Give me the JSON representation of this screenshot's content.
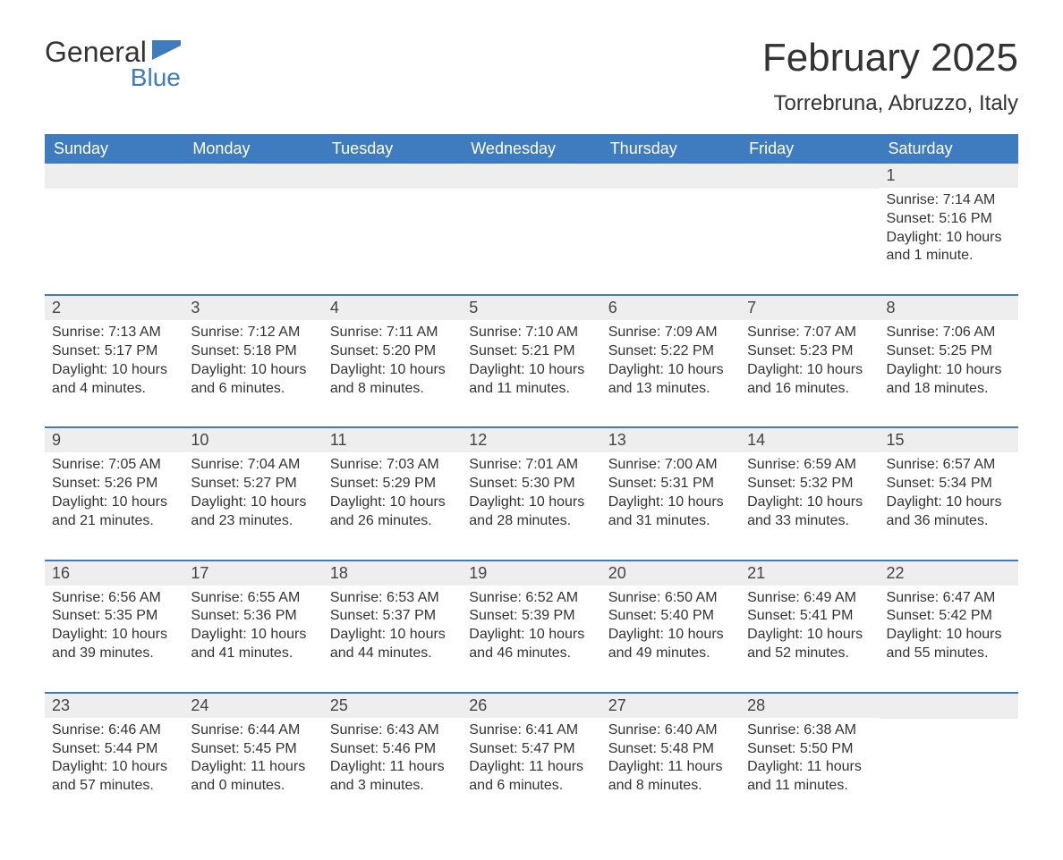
{
  "logo": {
    "word1": "General",
    "word2": "Blue",
    "color1": "#333333",
    "color2": "#3e7cbf"
  },
  "title": "February 2025",
  "location": "Torrebruna, Abruzzo, Italy",
  "colors": {
    "header_bg": "#3e7cbf",
    "header_text": "#ffffff",
    "daynum_bg": "#eeeeee",
    "row_border": "#3e7cbf",
    "text": "#333333",
    "background": "#ffffff"
  },
  "fonts": {
    "title_size": 44,
    "location_size": 24,
    "dayhead_size": 18,
    "cell_size": 16
  },
  "weekdays": [
    "Sunday",
    "Monday",
    "Tuesday",
    "Wednesday",
    "Thursday",
    "Friday",
    "Saturday"
  ],
  "weeks": [
    [
      null,
      null,
      null,
      null,
      null,
      null,
      {
        "n": "1",
        "sr": "Sunrise: 7:14 AM",
        "ss": "Sunset: 5:16 PM",
        "d1": "Daylight: 10 hours",
        "d2": "and 1 minute."
      }
    ],
    [
      {
        "n": "2",
        "sr": "Sunrise: 7:13 AM",
        "ss": "Sunset: 5:17 PM",
        "d1": "Daylight: 10 hours",
        "d2": "and 4 minutes."
      },
      {
        "n": "3",
        "sr": "Sunrise: 7:12 AM",
        "ss": "Sunset: 5:18 PM",
        "d1": "Daylight: 10 hours",
        "d2": "and 6 minutes."
      },
      {
        "n": "4",
        "sr": "Sunrise: 7:11 AM",
        "ss": "Sunset: 5:20 PM",
        "d1": "Daylight: 10 hours",
        "d2": "and 8 minutes."
      },
      {
        "n": "5",
        "sr": "Sunrise: 7:10 AM",
        "ss": "Sunset: 5:21 PM",
        "d1": "Daylight: 10 hours",
        "d2": "and 11 minutes."
      },
      {
        "n": "6",
        "sr": "Sunrise: 7:09 AM",
        "ss": "Sunset: 5:22 PM",
        "d1": "Daylight: 10 hours",
        "d2": "and 13 minutes."
      },
      {
        "n": "7",
        "sr": "Sunrise: 7:07 AM",
        "ss": "Sunset: 5:23 PM",
        "d1": "Daylight: 10 hours",
        "d2": "and 16 minutes."
      },
      {
        "n": "8",
        "sr": "Sunrise: 7:06 AM",
        "ss": "Sunset: 5:25 PM",
        "d1": "Daylight: 10 hours",
        "d2": "and 18 minutes."
      }
    ],
    [
      {
        "n": "9",
        "sr": "Sunrise: 7:05 AM",
        "ss": "Sunset: 5:26 PM",
        "d1": "Daylight: 10 hours",
        "d2": "and 21 minutes."
      },
      {
        "n": "10",
        "sr": "Sunrise: 7:04 AM",
        "ss": "Sunset: 5:27 PM",
        "d1": "Daylight: 10 hours",
        "d2": "and 23 minutes."
      },
      {
        "n": "11",
        "sr": "Sunrise: 7:03 AM",
        "ss": "Sunset: 5:29 PM",
        "d1": "Daylight: 10 hours",
        "d2": "and 26 minutes."
      },
      {
        "n": "12",
        "sr": "Sunrise: 7:01 AM",
        "ss": "Sunset: 5:30 PM",
        "d1": "Daylight: 10 hours",
        "d2": "and 28 minutes."
      },
      {
        "n": "13",
        "sr": "Sunrise: 7:00 AM",
        "ss": "Sunset: 5:31 PM",
        "d1": "Daylight: 10 hours",
        "d2": "and 31 minutes."
      },
      {
        "n": "14",
        "sr": "Sunrise: 6:59 AM",
        "ss": "Sunset: 5:32 PM",
        "d1": "Daylight: 10 hours",
        "d2": "and 33 minutes."
      },
      {
        "n": "15",
        "sr": "Sunrise: 6:57 AM",
        "ss": "Sunset: 5:34 PM",
        "d1": "Daylight: 10 hours",
        "d2": "and 36 minutes."
      }
    ],
    [
      {
        "n": "16",
        "sr": "Sunrise: 6:56 AM",
        "ss": "Sunset: 5:35 PM",
        "d1": "Daylight: 10 hours",
        "d2": "and 39 minutes."
      },
      {
        "n": "17",
        "sr": "Sunrise: 6:55 AM",
        "ss": "Sunset: 5:36 PM",
        "d1": "Daylight: 10 hours",
        "d2": "and 41 minutes."
      },
      {
        "n": "18",
        "sr": "Sunrise: 6:53 AM",
        "ss": "Sunset: 5:37 PM",
        "d1": "Daylight: 10 hours",
        "d2": "and 44 minutes."
      },
      {
        "n": "19",
        "sr": "Sunrise: 6:52 AM",
        "ss": "Sunset: 5:39 PM",
        "d1": "Daylight: 10 hours",
        "d2": "and 46 minutes."
      },
      {
        "n": "20",
        "sr": "Sunrise: 6:50 AM",
        "ss": "Sunset: 5:40 PM",
        "d1": "Daylight: 10 hours",
        "d2": "and 49 minutes."
      },
      {
        "n": "21",
        "sr": "Sunrise: 6:49 AM",
        "ss": "Sunset: 5:41 PM",
        "d1": "Daylight: 10 hours",
        "d2": "and 52 minutes."
      },
      {
        "n": "22",
        "sr": "Sunrise: 6:47 AM",
        "ss": "Sunset: 5:42 PM",
        "d1": "Daylight: 10 hours",
        "d2": "and 55 minutes."
      }
    ],
    [
      {
        "n": "23",
        "sr": "Sunrise: 6:46 AM",
        "ss": "Sunset: 5:44 PM",
        "d1": "Daylight: 10 hours",
        "d2": "and 57 minutes."
      },
      {
        "n": "24",
        "sr": "Sunrise: 6:44 AM",
        "ss": "Sunset: 5:45 PM",
        "d1": "Daylight: 11 hours",
        "d2": "and 0 minutes."
      },
      {
        "n": "25",
        "sr": "Sunrise: 6:43 AM",
        "ss": "Sunset: 5:46 PM",
        "d1": "Daylight: 11 hours",
        "d2": "and 3 minutes."
      },
      {
        "n": "26",
        "sr": "Sunrise: 6:41 AM",
        "ss": "Sunset: 5:47 PM",
        "d1": "Daylight: 11 hours",
        "d2": "and 6 minutes."
      },
      {
        "n": "27",
        "sr": "Sunrise: 6:40 AM",
        "ss": "Sunset: 5:48 PM",
        "d1": "Daylight: 11 hours",
        "d2": "and 8 minutes."
      },
      {
        "n": "28",
        "sr": "Sunrise: 6:38 AM",
        "ss": "Sunset: 5:50 PM",
        "d1": "Daylight: 11 hours",
        "d2": "and 11 minutes."
      },
      null
    ]
  ]
}
